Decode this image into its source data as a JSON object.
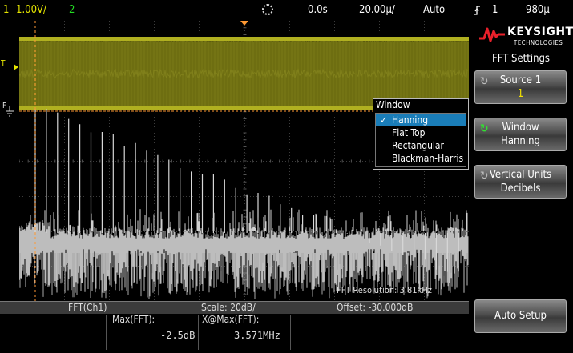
{
  "status_bar": {
    "channel1_number": "1",
    "channel1_scale": "1.00V/",
    "channel2_number": "2",
    "time_delay": "0.0s",
    "time_scale": "20.00µ/",
    "trigger_mode": "Auto",
    "trigger_icon": "rising-edge-icon",
    "trigger_source": "1",
    "trigger_level": "980µ"
  },
  "markers": {
    "ch1_marker": "T",
    "fft_marker": "F"
  },
  "panel": {
    "brand": "KEYSIGHT",
    "brand_sub": "TECHNOLOGIES",
    "menu_title": "FFT Settings",
    "softkeys": [
      {
        "label": "Source 1",
        "value": "1"
      },
      {
        "label": "Window",
        "value": "Hanning"
      },
      {
        "label": "Vertical Units",
        "value": "Decibels"
      },
      {
        "label": "Auto Setup"
      }
    ]
  },
  "window_popup": {
    "title": "Window",
    "options": [
      "Hanning",
      "Flat Top",
      "Rectangular",
      "Blackman-Harris"
    ],
    "selected": "Hanning"
  },
  "fft_resolution": "FFT Resolution: 3.81kHz",
  "bottom_bar": {
    "source": "FFT(Ch1)",
    "scale": "Scale: 20dB/",
    "offset": "Offset: -30.000dB",
    "max_label": "Max(FFT):",
    "max_value": "-2.5dB",
    "xmax_label": "X@Max(FFT):",
    "xmax_value": "3.571MHz"
  },
  "colors": {
    "channel1": "#e6e600",
    "channel2": "#22dd22",
    "fft": "#c8c8c8",
    "marker": "#ff9933",
    "selected": "#1a7db8"
  }
}
